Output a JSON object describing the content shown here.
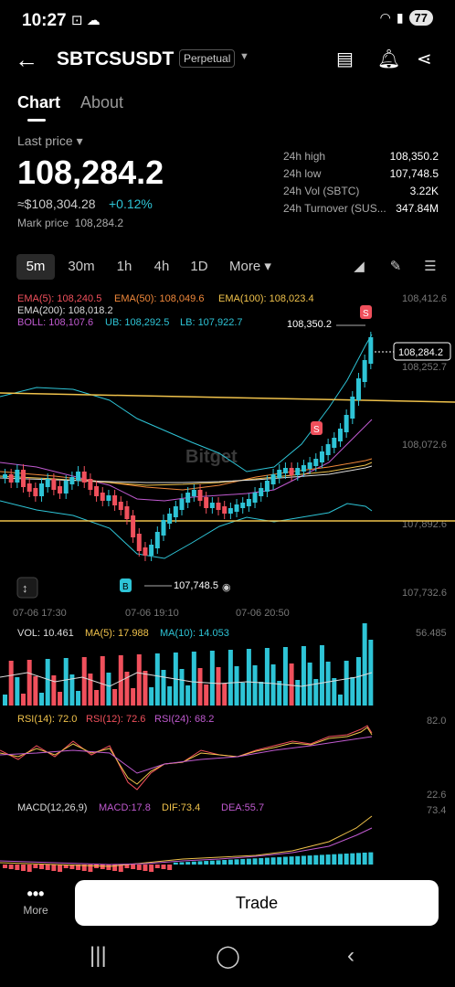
{
  "status": {
    "time": "10:27",
    "battery": "77"
  },
  "header": {
    "symbol": "SBTCSUSDT",
    "badge": "Perpetual"
  },
  "tabs": [
    "Chart",
    "About"
  ],
  "quote": {
    "last_label": "Last price",
    "last": "108,284.2",
    "usd": "≈$108,304.28",
    "change": "+0.12%",
    "mark_label": "Mark price",
    "mark": "108,284.2"
  },
  "stats": [
    {
      "k": "24h high",
      "v": "108,350.2"
    },
    {
      "k": "24h low",
      "v": "107,748.5"
    },
    {
      "k": "24h Vol (SBTC)",
      "v": "3.22K"
    },
    {
      "k": "24h Turnover (SUS...",
      "v": "347.84M"
    }
  ],
  "timeframes": [
    "5m",
    "30m",
    "1h",
    "4h",
    "1D",
    "More"
  ],
  "indicators": {
    "ema5": "EMA(5): 108,240.5",
    "ema50": "EMA(50): 108,049.6",
    "ema100": "EMA(100): 108,023.4",
    "ema200": "EMA(200): 108,018.2",
    "boll": "BOLL: 108,107.6",
    "ub": "UB: 108,292.5",
    "lb": "LB: 107,922.7"
  },
  "price_axis": [
    "108,412.6",
    "108,252.7",
    "108,072.6",
    "107,892.6",
    "107,732.6"
  ],
  "time_axis": [
    "07-06 17:30",
    "07-06 19:10",
    "07-06 20:50"
  ],
  "annotations": {
    "high": "108,350.2",
    "low": "107,748.5",
    "current": "108,284.2",
    "watermark": "Bitget"
  },
  "volume": {
    "vol": "VOL: 10.461",
    "ma5": "MA(5): 17.988",
    "ma10": "MA(10): 14.053",
    "axis": "56.485"
  },
  "rsi": {
    "r14": "RSI(14): 72.0",
    "r12": "RSI(12): 72.6",
    "r24": "RSI(24): 68.2",
    "top": "82.0",
    "bottom": "22.6"
  },
  "macd": {
    "label": "MACD(12,26,9)",
    "macd": "MACD:17.8",
    "dif": "DIF:73.4",
    "dea": "DEA:55.7",
    "axis": "73.4"
  },
  "bottom": {
    "more": "More",
    "trade": "Trade"
  },
  "colors": {
    "up": "#2ec4d6",
    "down": "#f0505c",
    "yellow": "#f0c24b",
    "purple": "#c05ad0",
    "orange": "#f0883a"
  }
}
